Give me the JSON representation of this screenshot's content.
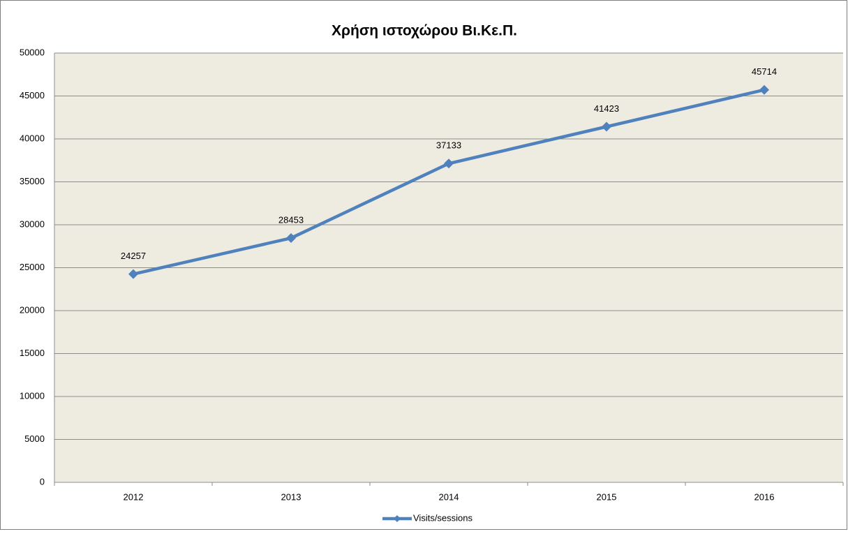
{
  "chart_data": {
    "type": "line",
    "title": "Χρήση ιστοχώρου Βι.Κε.Π.",
    "categories": [
      "2012",
      "2013",
      "2014",
      "2015",
      "2016"
    ],
    "series": [
      {
        "name": "Visits/sessions",
        "color": "#4f81bd",
        "values": [
          24257,
          28453,
          37133,
          41423,
          45714
        ]
      }
    ],
    "ylim": [
      0,
      50000
    ],
    "yticks": [
      0,
      5000,
      10000,
      15000,
      20000,
      25000,
      30000,
      35000,
      40000,
      45000,
      50000
    ],
    "grid": true,
    "legend": "bottom",
    "data_labels": true
  }
}
